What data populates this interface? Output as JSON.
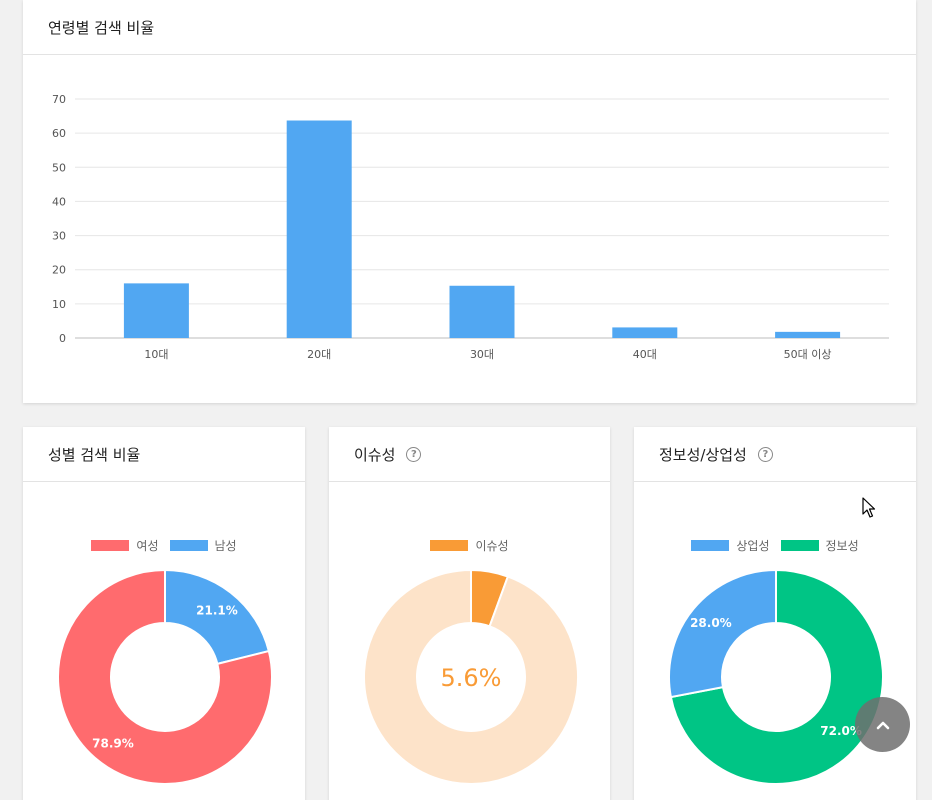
{
  "age_card": {
    "title": "연령별 검색 비율"
  },
  "gender_card": {
    "title": "성별 검색 비율"
  },
  "issue_card": {
    "title": "이슈성",
    "help": "?"
  },
  "info_card": {
    "title": "정보성/상업성",
    "help": "?"
  },
  "icons": {
    "help": "question-circle-icon",
    "scroll_top": "chevron-up-icon",
    "cursor": "mouse-pointer-icon"
  },
  "colors": {
    "bar": "#51a7f2",
    "female": "#ff6b6e",
    "male": "#51a7f2",
    "issue": "#f99b36",
    "issue_rest": "#fde3c9",
    "commercial": "#51a7f2",
    "informational": "#00c585",
    "issue_text": "#f99b36"
  },
  "chart_data": [
    {
      "type": "bar",
      "title": "연령별 검색 비율",
      "categories": [
        "10대",
        "20대",
        "30대",
        "40대",
        "50대 이상"
      ],
      "values": [
        16,
        63.7,
        15.3,
        3.1,
        1.8
      ],
      "ylim": [
        0,
        70
      ],
      "yticks": [
        "0",
        "10",
        "20",
        "30",
        "40",
        "50",
        "60",
        "70"
      ],
      "grid": true
    },
    {
      "type": "pie",
      "title": "성별 검색 비율",
      "series": [
        {
          "name": "여성",
          "value": 78.9,
          "label": "78.9%"
        },
        {
          "name": "남성",
          "value": 21.1,
          "label": "21.1%"
        }
      ],
      "legend": "top"
    },
    {
      "type": "pie",
      "title": "이슈성",
      "series": [
        {
          "name": "이슈성",
          "value": 5.6
        }
      ],
      "center_label": "5.6%",
      "legend": "top"
    },
    {
      "type": "pie",
      "title": "정보성/상업성",
      "series": [
        {
          "name": "상업성",
          "value": 28.0,
          "label": "28.0%"
        },
        {
          "name": "정보성",
          "value": 72.0,
          "label": "72.0%"
        }
      ],
      "legend": "top"
    }
  ]
}
